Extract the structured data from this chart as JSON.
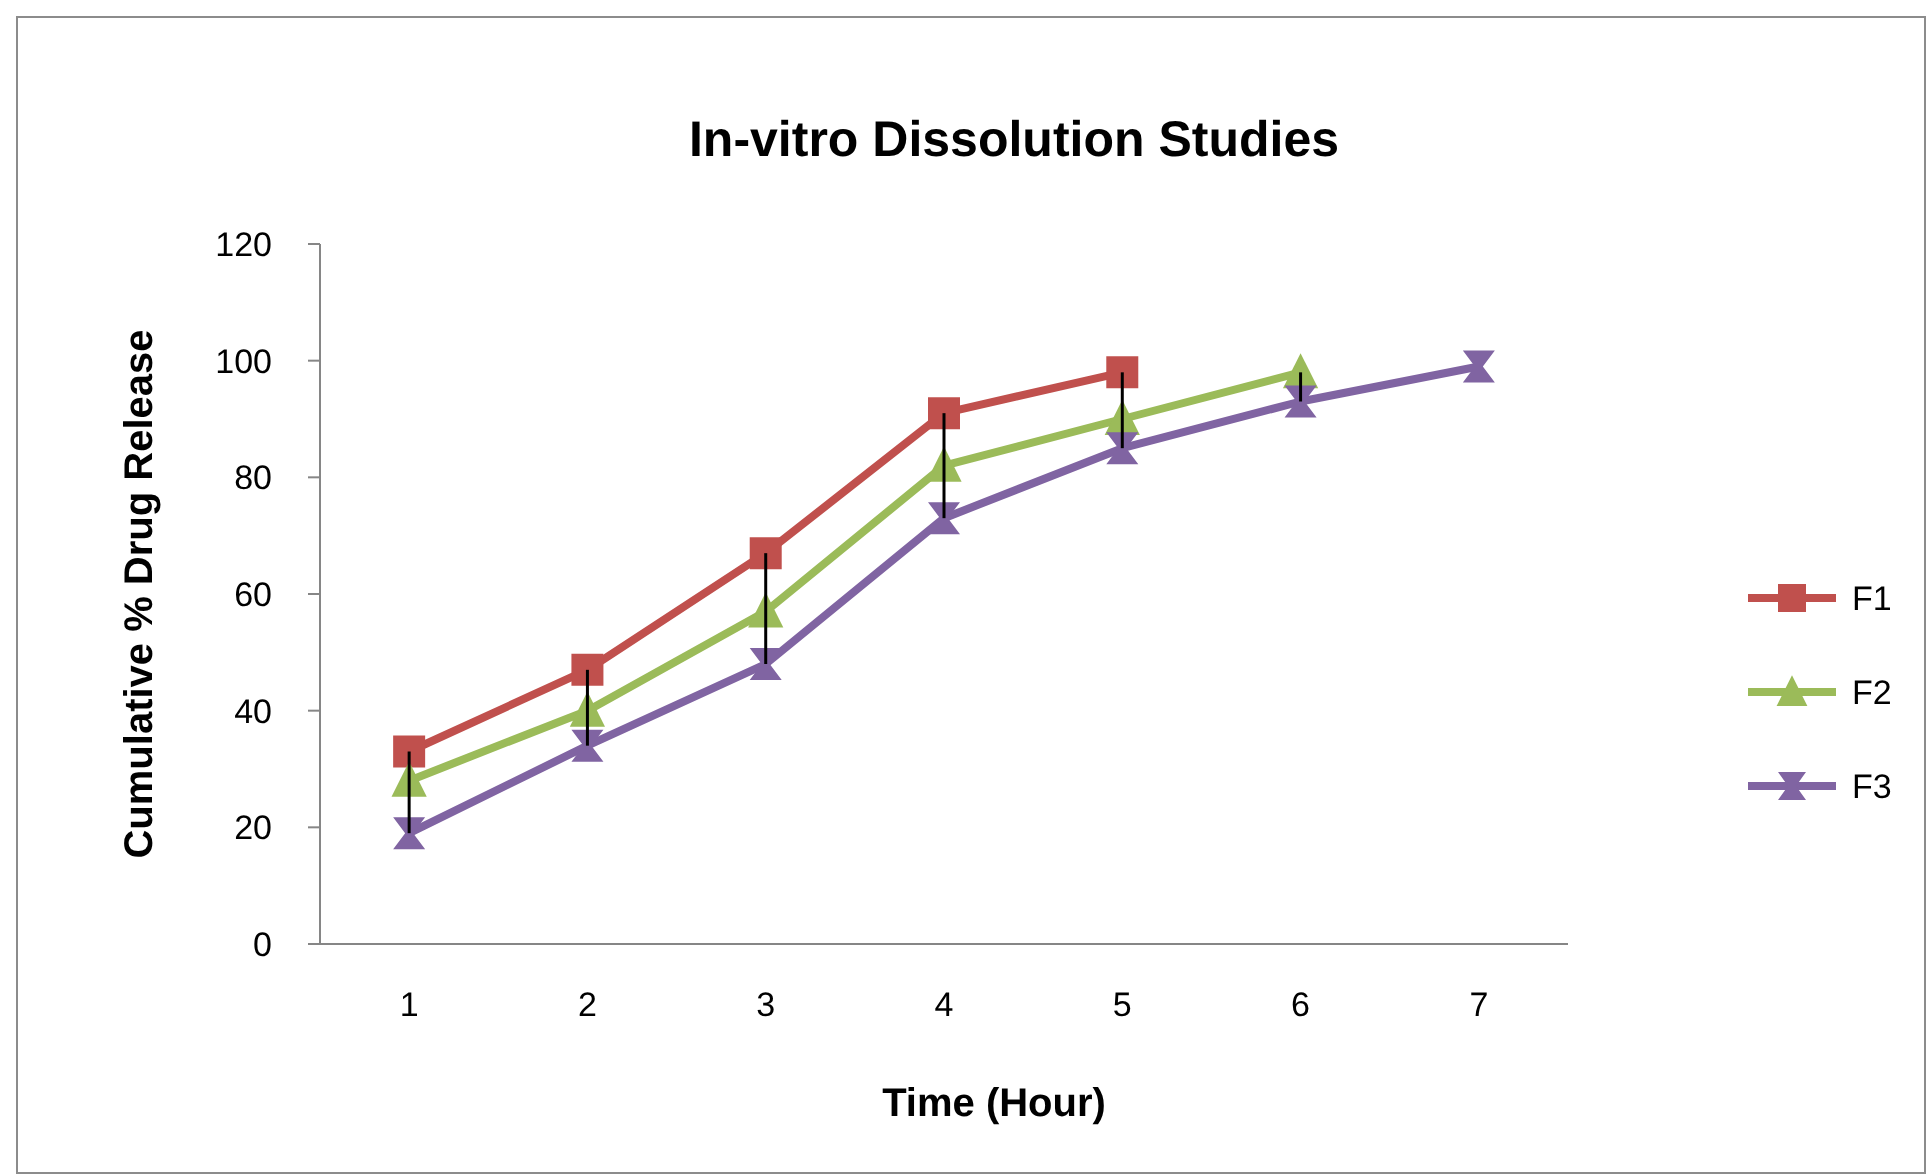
{
  "chart_data": {
    "type": "line",
    "title": "In-vitro Dissolution Studies",
    "xlabel": "Time (Hour)",
    "ylabel": "Cumulative % Drug Release",
    "categories": [
      "1",
      "2",
      "3",
      "4",
      "5",
      "6",
      "7"
    ],
    "ylim": [
      0,
      120
    ],
    "yticks": [
      0,
      20,
      40,
      60,
      80,
      100,
      120
    ],
    "grid": false,
    "legend": "right",
    "series": [
      {
        "name": "F1",
        "color": "#c0504d",
        "marker": "square",
        "values": [
          33,
          47,
          67,
          91,
          98,
          null,
          null
        ],
        "errors": [
          [
            19,
            33
          ],
          [
            34,
            47
          ],
          [
            48,
            67
          ],
          [
            73,
            91
          ],
          [
            85,
            98
          ],
          null,
          null
        ]
      },
      {
        "name": "F2",
        "color": "#9bbb59",
        "marker": "triangle",
        "values": [
          28,
          40,
          57,
          82,
          90,
          98,
          null
        ],
        "errors": [
          null,
          null,
          null,
          null,
          null,
          [
            93,
            98
          ],
          null
        ]
      },
      {
        "name": "F3",
        "color": "#8064a2",
        "marker": "cross",
        "values": [
          19,
          34,
          48,
          73,
          85,
          93,
          99
        ]
      }
    ]
  }
}
